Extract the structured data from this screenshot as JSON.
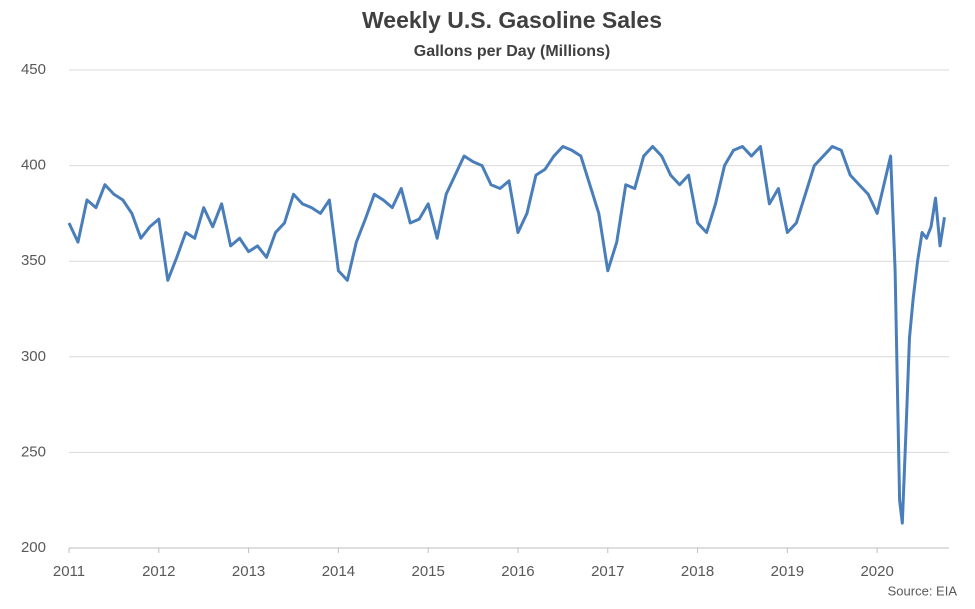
{
  "chart_data": {
    "type": "line",
    "title": "Weekly U.S. Gasoline Sales",
    "subtitle": "Gallons per Day (Millions)",
    "source": "Source: EIA",
    "x": [
      2011.0,
      2011.1,
      2011.2,
      2011.3,
      2011.4,
      2011.5,
      2011.6,
      2011.7,
      2011.8,
      2011.9,
      2012.0,
      2012.1,
      2012.2,
      2012.3,
      2012.4,
      2012.5,
      2012.6,
      2012.7,
      2012.8,
      2012.9,
      2013.0,
      2013.1,
      2013.2,
      2013.3,
      2013.4,
      2013.5,
      2013.6,
      2013.7,
      2013.8,
      2013.9,
      2014.0,
      2014.1,
      2014.2,
      2014.3,
      2014.4,
      2014.5,
      2014.6,
      2014.7,
      2014.8,
      2014.9,
      2015.0,
      2015.1,
      2015.2,
      2015.3,
      2015.4,
      2015.5,
      2015.6,
      2015.7,
      2015.8,
      2015.9,
      2016.0,
      2016.1,
      2016.2,
      2016.3,
      2016.4,
      2016.5,
      2016.6,
      2016.7,
      2016.8,
      2016.9,
      2017.0,
      2017.1,
      2017.2,
      2017.3,
      2017.4,
      2017.5,
      2017.6,
      2017.7,
      2017.8,
      2017.9,
      2018.0,
      2018.1,
      2018.2,
      2018.3,
      2018.4,
      2018.5,
      2018.6,
      2018.7,
      2018.8,
      2018.9,
      2019.0,
      2019.1,
      2019.2,
      2019.3,
      2019.4,
      2019.5,
      2019.6,
      2019.7,
      2019.8,
      2019.9,
      2020.0,
      2020.1,
      2020.15,
      2020.2,
      2020.25,
      2020.28,
      2020.32,
      2020.36,
      2020.4,
      2020.45,
      2020.5,
      2020.55,
      2020.6,
      2020.65,
      2020.7,
      2020.75
    ],
    "series": [
      {
        "name": "Gasoline Sales",
        "color": "#4a7ebb",
        "values": [
          370,
          360,
          382,
          378,
          390,
          385,
          382,
          375,
          362,
          368,
          372,
          340,
          352,
          365,
          362,
          378,
          368,
          380,
          358,
          362,
          355,
          358,
          352,
          365,
          370,
          385,
          380,
          378,
          375,
          382,
          345,
          340,
          360,
          372,
          385,
          382,
          378,
          388,
          370,
          372,
          380,
          362,
          385,
          395,
          405,
          402,
          400,
          390,
          388,
          392,
          365,
          375,
          395,
          398,
          405,
          410,
          408,
          405,
          390,
          375,
          345,
          360,
          390,
          388,
          405,
          410,
          405,
          395,
          390,
          395,
          370,
          365,
          380,
          400,
          408,
          410,
          405,
          410,
          380,
          388,
          365,
          370,
          385,
          400,
          405,
          410,
          408,
          395,
          390,
          385,
          375,
          395,
          405,
          345,
          225,
          213,
          260,
          310,
          330,
          350,
          365,
          362,
          368,
          383,
          358,
          373
        ]
      }
    ],
    "xlim": [
      2011,
      2020.8
    ],
    "xticks": [
      2011,
      2012,
      2013,
      2014,
      2015,
      2016,
      2017,
      2018,
      2019,
      2020
    ],
    "ylim": [
      200,
      450
    ],
    "yticks": [
      200,
      250,
      300,
      350,
      400,
      450
    ],
    "grid": true
  }
}
